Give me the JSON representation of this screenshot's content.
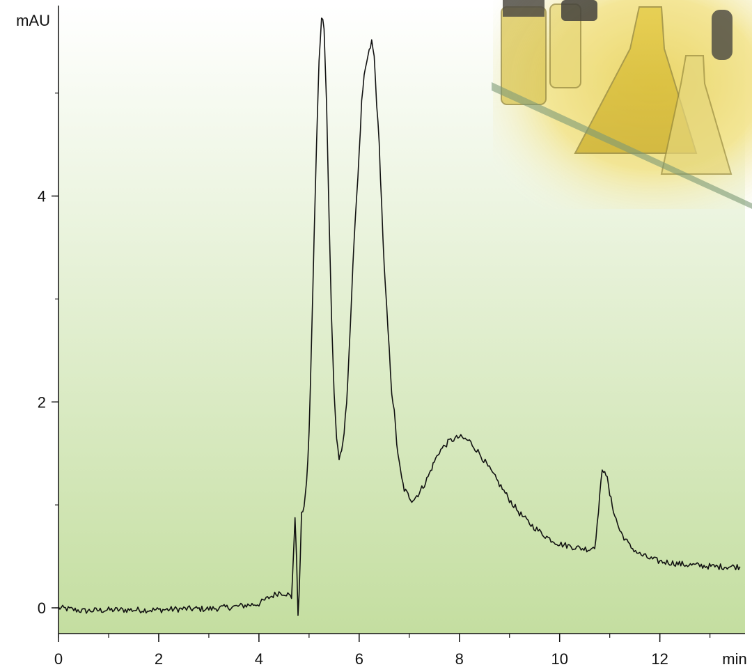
{
  "chart_data": {
    "type": "line",
    "title": "",
    "xlabel": "min",
    "ylabel": "mAU",
    "xlim": [
      0,
      13.7
    ],
    "ylim": [
      -0.25,
      5.85
    ],
    "x_ticks": [
      0,
      2,
      4,
      6,
      8,
      10,
      12
    ],
    "x_tick_labels": [
      "0",
      "2",
      "4",
      "6",
      "8",
      "10",
      "12"
    ],
    "y_ticks": [
      0,
      2,
      4
    ],
    "y_tick_labels": [
      "0",
      "2",
      "4"
    ],
    "grid": false,
    "legend": "none",
    "line_color": "#111111",
    "background_gradient": [
      "#ffffff",
      "#c4dea0"
    ],
    "decoration": "photo-of-laboratory-flasks-top-right",
    "series": [
      {
        "x": [
          0.0,
          0.5,
          1.0,
          1.5,
          2.0,
          2.5,
          3.0,
          3.5,
          4.0,
          4.2,
          4.4,
          4.55,
          4.65,
          4.72,
          4.75,
          4.78,
          4.8,
          4.85,
          4.9,
          4.95,
          5.0,
          5.05,
          5.1,
          5.15,
          5.2,
          5.25,
          5.3,
          5.35,
          5.4,
          5.45,
          5.5,
          5.55,
          5.6,
          5.65,
          5.7,
          5.75,
          5.8,
          5.85,
          5.9,
          6.0,
          6.05,
          6.1,
          6.15,
          6.2,
          6.25,
          6.3,
          6.35,
          6.4,
          6.45,
          6.5,
          6.55,
          6.6,
          6.65,
          6.7,
          6.75,
          6.8,
          6.85,
          6.9,
          7.0,
          7.05,
          7.1,
          7.2,
          7.3,
          7.4,
          7.5,
          7.6,
          7.8,
          8.0,
          8.2,
          8.4,
          8.6,
          8.8,
          9.0,
          9.2,
          9.4,
          9.6,
          9.8,
          10.0,
          10.2,
          10.4,
          10.6,
          10.7,
          10.75,
          10.8,
          10.85,
          10.9,
          10.95,
          11.0,
          11.1,
          11.2,
          11.4,
          11.6,
          11.8,
          12.0,
          12.2,
          12.5,
          12.8,
          13.1,
          13.4,
          13.6
        ],
        "y": [
          0.0,
          -0.03,
          -0.02,
          -0.02,
          -0.02,
          -0.01,
          -0.01,
          0.01,
          0.04,
          0.1,
          0.15,
          0.14,
          0.1,
          0.85,
          0.5,
          -0.05,
          0.1,
          0.9,
          1.0,
          1.2,
          1.7,
          2.6,
          3.6,
          4.5,
          5.3,
          5.75,
          5.65,
          4.9,
          3.8,
          2.8,
          2.1,
          1.65,
          1.45,
          1.5,
          1.7,
          2.0,
          2.5,
          3.0,
          3.6,
          4.4,
          4.9,
          5.15,
          5.3,
          5.4,
          5.5,
          5.35,
          4.9,
          4.5,
          3.9,
          3.3,
          2.9,
          2.5,
          2.1,
          1.9,
          1.6,
          1.4,
          1.25,
          1.15,
          1.08,
          1.05,
          1.06,
          1.12,
          1.2,
          1.3,
          1.42,
          1.52,
          1.62,
          1.66,
          1.62,
          1.5,
          1.35,
          1.2,
          1.05,
          0.92,
          0.82,
          0.74,
          0.67,
          0.62,
          0.6,
          0.58,
          0.57,
          0.6,
          0.8,
          1.1,
          1.32,
          1.35,
          1.25,
          1.1,
          0.9,
          0.75,
          0.6,
          0.52,
          0.48,
          0.45,
          0.44,
          0.42,
          0.41,
          0.4,
          0.4,
          0.4
        ]
      }
    ]
  }
}
